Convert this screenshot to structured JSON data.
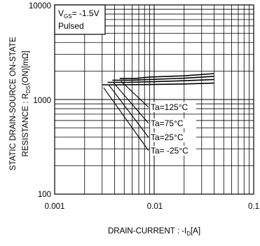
{
  "chart_data": {
    "type": "line",
    "x_scale": "log",
    "y_scale": "log",
    "xlim": [
      0.001,
      0.1
    ],
    "ylim": [
      100,
      10000
    ],
    "grid": true,
    "x_ticks": [
      "0.001",
      "0.01",
      "0.1"
    ],
    "y_ticks": [
      "10000",
      "1000",
      "100"
    ],
    "xlabel": {
      "main": "DRAIN-CURRENT : -I",
      "sub": "D",
      "unit": "[A]"
    },
    "ylabel": {
      "line1": "STATIC DRAIN-SOURCE ON-STATE",
      "line2_main": "RESISTANCE : R",
      "line2_sub": "DS",
      "line2_unit": "(ON)[mΩ]"
    },
    "conditions": {
      "vgs_main": "V",
      "vgs_sub": "GS",
      "vgs_value": "= -1.5V",
      "pulsed": "Pulsed"
    },
    "series": [
      {
        "name": "Ta=125°C",
        "x": [
          0.0045,
          0.0065,
          0.009,
          0.02,
          0.04
        ],
        "y": [
          1670,
          1670,
          1730,
          1780,
          1880
        ]
      },
      {
        "name": "Ta=75°C",
        "x": [
          0.0038,
          0.006,
          0.009,
          0.02,
          0.04
        ],
        "y": [
          1600,
          1600,
          1630,
          1680,
          1760
        ]
      },
      {
        "name": "Ta=25°C",
        "x": [
          0.0034,
          0.0055,
          0.009,
          0.02,
          0.04
        ],
        "y": [
          1520,
          1520,
          1540,
          1580,
          1630
        ]
      },
      {
        "name": "Ta= -25°C",
        "x": [
          0.003,
          0.0048,
          0.009,
          0.02,
          0.04
        ],
        "y": [
          1430,
          1430,
          1440,
          1460,
          1490
        ]
      }
    ],
    "legend_labels": [
      "Ta=125°C",
      "Ta=75°C",
      "Ta=25°C",
      "Ta= -25°C"
    ]
  }
}
